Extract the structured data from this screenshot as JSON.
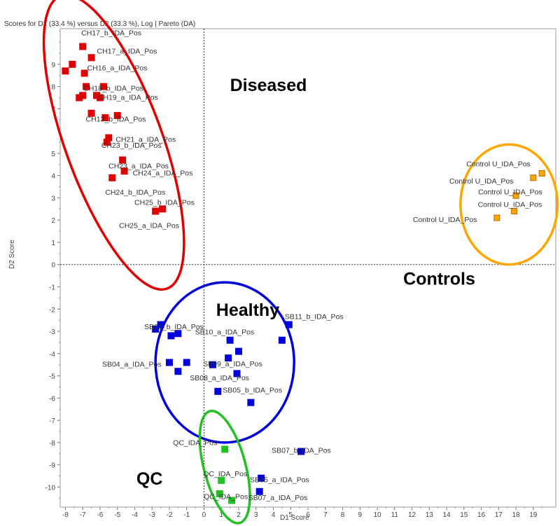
{
  "chart_data": {
    "type": "scatter",
    "title": "Scores for D1 (33.4 %) versus D2 (33.3 %), Log | Pareto (DA)",
    "xlabel": "D1 Score",
    "ylabel": "D2 Score",
    "xlim": [
      -8.3,
      20.3
    ],
    "ylim": [
      -10.9,
      10.6
    ],
    "x_ticks": [
      -8,
      -7,
      -6,
      -5,
      -4,
      -3,
      -2,
      -1,
      0,
      1,
      2,
      3,
      4,
      5,
      6,
      7,
      8,
      9,
      10,
      11,
      12,
      13,
      14,
      15,
      16,
      17,
      18,
      19
    ],
    "y_ticks": [
      -10,
      -9,
      -8,
      -7,
      -6,
      -5,
      -4,
      -3,
      -2,
      -1,
      0,
      1,
      2,
      3,
      4,
      5,
      7,
      8,
      9
    ],
    "colors": {
      "Diseased": "#e00000",
      "Controls": "#ffa500",
      "Healthy": "#0000dd",
      "QC": "#22c022"
    },
    "groups": [
      {
        "name": "Diseased",
        "color": "#e00000",
        "ring": {
          "cx": -5.2,
          "cy": 5.5,
          "rx": 2.8,
          "ry": 7.0,
          "rot": -20
        }
      },
      {
        "name": "Controls",
        "color": "#ffa500",
        "ring": {
          "cx": 17.6,
          "cy": 2.7,
          "rx": 2.8,
          "ry": 2.7,
          "rot": 0
        }
      },
      {
        "name": "Healthy",
        "color": "#0000dd",
        "ring": {
          "cx": 1.2,
          "cy": -4.4,
          "rx": 4.0,
          "ry": 3.6,
          "rot": 0
        }
      },
      {
        "name": "QC",
        "color": "#22c022",
        "ring": {
          "cx": 1.2,
          "cy": -9.1,
          "rx": 1.2,
          "ry": 2.6,
          "rot": -15
        }
      }
    ],
    "series": [
      {
        "name": "Diseased",
        "points": [
          [
            -7.0,
            9.8
          ],
          [
            -6.5,
            9.3
          ],
          [
            -6.9,
            8.6
          ],
          [
            -7.6,
            9.0
          ],
          [
            -8.0,
            8.7
          ],
          [
            -6.8,
            8.0
          ],
          [
            -7.0,
            7.6
          ],
          [
            -7.2,
            7.5
          ],
          [
            -6.2,
            7.6
          ],
          [
            -6.0,
            7.5
          ],
          [
            -5.8,
            8.0
          ],
          [
            -6.5,
            6.8
          ],
          [
            -5.7,
            6.6
          ],
          [
            -5.0,
            6.7
          ],
          [
            -5.6,
            5.5
          ],
          [
            -5.5,
            5.7
          ],
          [
            -4.7,
            4.7
          ],
          [
            -4.6,
            4.2
          ],
          [
            -5.3,
            3.9
          ],
          [
            -2.4,
            2.5
          ],
          [
            -2.8,
            2.4
          ]
        ],
        "labels": [
          {
            "text": "CH17_b_IDA_Pos",
            "x": -7.0,
            "y": 9.8
          },
          {
            "text": "CH17_a_IDA_Pos",
            "x": -6.5,
            "y": 9.3
          },
          {
            "text": "CH16_a_IDA_Pos",
            "x": -6.9,
            "y": 8.6
          },
          {
            "text": "CH18_b_IDA_Pos",
            "x": -6.8,
            "y": 8.0
          },
          {
            "text": "CH19_a_IDA_Pos",
            "x": -5.8,
            "y": 7.6
          },
          {
            "text": "CH13_b_IDA_Pos",
            "x": -6.5,
            "y": 6.8
          },
          {
            "text": "CH23_b_IDA_Pos",
            "x": -5.6,
            "y": 5.5
          },
          {
            "text": "CH21_a_IDA_Pos",
            "x": -5.5,
            "y": 5.7
          },
          {
            "text": "CH23_a_IDA_Pos",
            "x": -4.7,
            "y": 4.7
          },
          {
            "text": "CH24_a_IDA_Pos",
            "x": -4.6,
            "y": 4.2
          },
          {
            "text": "CH24_b_IDA_Pos",
            "x": -5.3,
            "y": 3.9
          },
          {
            "text": "CH25_b_IDA_Pos",
            "x": -2.4,
            "y": 2.5
          },
          {
            "text": "CH25_a_IDA_Pos",
            "x": -2.8,
            "y": 2.4
          }
        ]
      },
      {
        "name": "Controls",
        "points": [
          [
            19.5,
            4.1
          ],
          [
            19.0,
            3.9
          ],
          [
            18.0,
            3.1
          ],
          [
            17.9,
            2.4
          ],
          [
            16.9,
            2.1
          ]
        ],
        "labels": [
          {
            "text": "Control U_IDA_Pos",
            "x": 19.5,
            "y": 4.1
          },
          {
            "text": "Control U_IDA_Pos",
            "x": 19.0,
            "y": 3.9
          },
          {
            "text": "Control U_IDA_Pos",
            "x": 18.0,
            "y": 3.1
          },
          {
            "text": "Control U_IDA_Pos",
            "x": 17.9,
            "y": 2.4
          },
          {
            "text": "Control U_IDA_Pos",
            "x": 16.9,
            "y": 2.1
          }
        ]
      },
      {
        "name": "Healthy",
        "points": [
          [
            -2.5,
            -2.7
          ],
          [
            -2.8,
            -2.9
          ],
          [
            -1.9,
            -3.2
          ],
          [
            -1.5,
            -3.1
          ],
          [
            1.5,
            -3.4
          ],
          [
            2.0,
            -3.9
          ],
          [
            1.4,
            -4.2
          ],
          [
            4.5,
            -3.4
          ],
          [
            4.9,
            -2.7
          ],
          [
            -2.0,
            -4.4
          ],
          [
            -1.0,
            -4.4
          ],
          [
            -1.5,
            -4.8
          ],
          [
            0.5,
            -4.5
          ],
          [
            1.9,
            -4.9
          ],
          [
            0.8,
            -5.7
          ],
          [
            2.7,
            -6.2
          ]
        ],
        "labels": [
          {
            "text": "SB01_b_IDA_Pos",
            "x": -2.8,
            "y": -2.9
          },
          {
            "text": "SB11_b_IDA_Pos",
            "x": 4.9,
            "y": -2.7
          },
          {
            "text": "SB10_a_IDA_Pos",
            "x": 1.5,
            "y": -3.4
          },
          {
            "text": "SB04_a_IDA_Pos",
            "x": -2.0,
            "y": -4.4
          },
          {
            "text": "SB09_a_IDA_Pos",
            "x": 1.4,
            "y": -4.2
          },
          {
            "text": "SB08_a_IDA_Pos",
            "x": 0.8,
            "y": -5.7
          },
          {
            "text": "SB05_b_IDA_Pos",
            "x": 2.7,
            "y": -6.2
          },
          {
            "text": "SB07_b_IDA_Pos",
            "x": 5.6,
            "y": -8.4
          },
          {
            "text": "SB05_a_IDA_Pos",
            "x": 3.3,
            "y": -9.6
          },
          {
            "text": "SB07_a_IDA_Pos",
            "x": 3.2,
            "y": -10.2
          }
        ]
      },
      {
        "name": "QC",
        "points": [
          [
            1.2,
            -8.3
          ],
          [
            1.0,
            -9.7
          ],
          [
            0.9,
            -10.3
          ],
          [
            1.6,
            -10.6
          ]
        ],
        "labels": [
          {
            "text": "QC_IDA_Pos",
            "x": 1.2,
            "y": -8.3
          },
          {
            "text": "QC_IDA_Pos",
            "x": 1.0,
            "y": -9.7
          },
          {
            "text": "QC_IDA_Pos",
            "x": 1.6,
            "y": -10.6
          }
        ]
      }
    ],
    "extra_healthy_points": [
      [
        5.6,
        -8.4
      ],
      [
        3.3,
        -9.6
      ],
      [
        3.2,
        -10.2
      ]
    ],
    "group_labels": [
      {
        "text": "Diseased",
        "x": 1.5,
        "y": 7.8
      },
      {
        "text": "Healthy",
        "x": 0.7,
        "y": -2.3
      },
      {
        "text": "Controls",
        "x": 11.5,
        "y": -0.9
      },
      {
        "text": "QC",
        "x": -3.9,
        "y": -9.9
      }
    ]
  }
}
